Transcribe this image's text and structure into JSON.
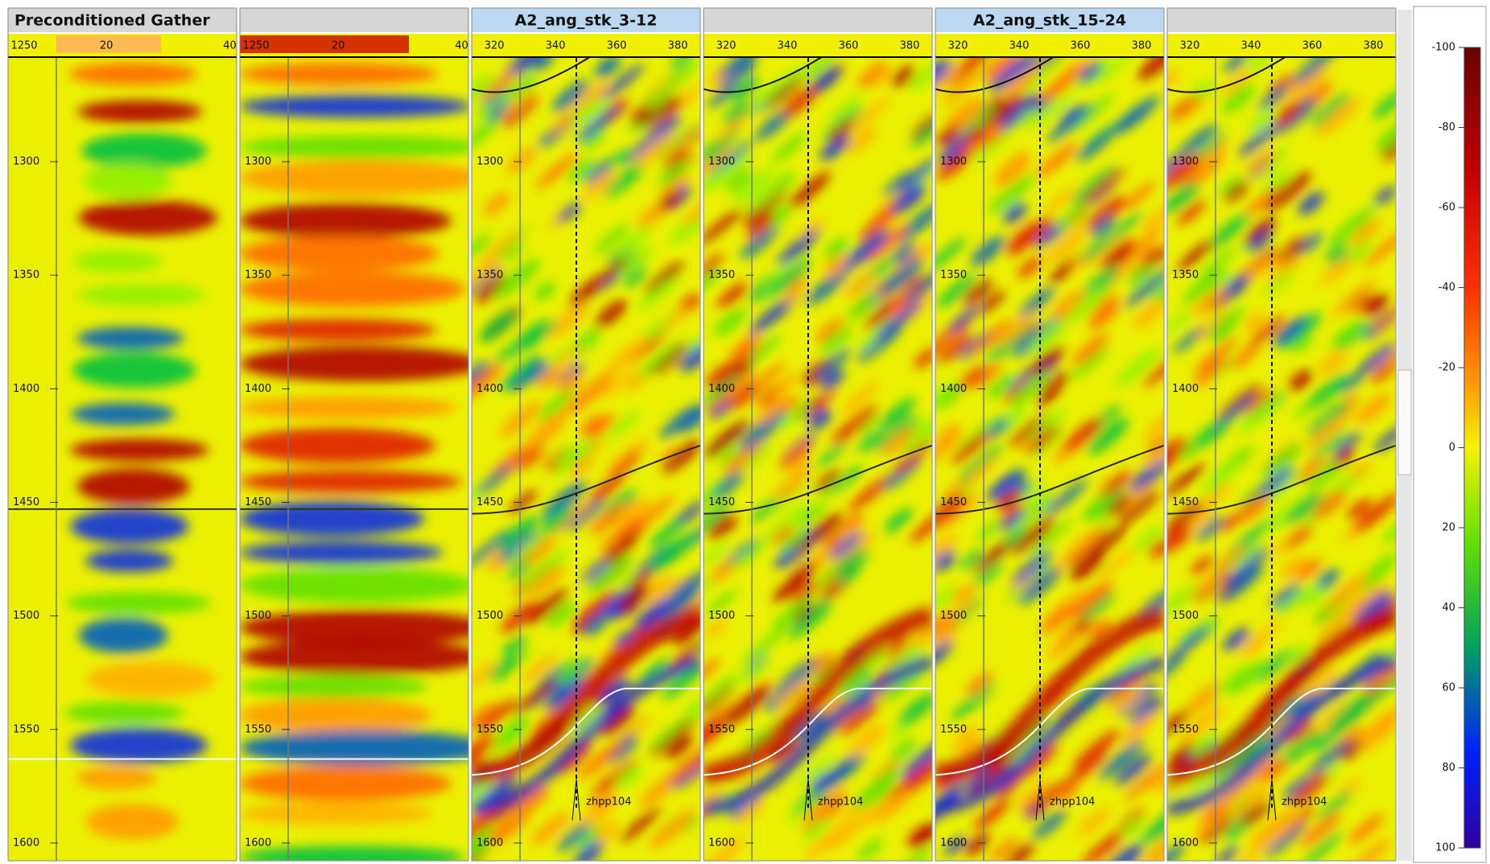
{
  "panels": [
    {
      "title": "Preconditioned Gather",
      "top_ticks": [
        1250,
        20,
        40
      ],
      "depth_ticks": [
        1300,
        1350,
        1400,
        1450,
        1500,
        1550,
        1600
      ]
    },
    {
      "top_ticks": [
        1250,
        20,
        40
      ],
      "depth_ticks": [
        1300,
        1350,
        1400,
        1450,
        1500,
        1550,
        1600
      ]
    },
    {
      "title": "A2_ang_stk_3-12",
      "top_ticks": [
        320,
        340,
        360,
        380
      ],
      "depth_ticks": [
        1300,
        1350,
        1400,
        1450,
        1500,
        1550,
        1600
      ],
      "well_label": "zhpp104"
    },
    {
      "top_ticks": [
        320,
        340,
        360,
        380
      ],
      "depth_ticks": [
        1300,
        1350,
        1400,
        1450,
        1500,
        1550,
        1600
      ],
      "well_label": "zhpp104"
    },
    {
      "title": "A2_ang_stk_15-24",
      "top_ticks": [
        320,
        340,
        360,
        380
      ],
      "depth_ticks": [
        1300,
        1350,
        1400,
        1450,
        1500,
        1550,
        1600
      ],
      "well_label": "zhpp104"
    },
    {
      "top_ticks": [
        320,
        340,
        360,
        380
      ],
      "depth_ticks": [
        1300,
        1350,
        1400,
        1450,
        1500,
        1550,
        1600
      ],
      "well_label": "zhpp104"
    }
  ],
  "colorbar": {
    "ticks": [
      -100,
      -80,
      -60,
      -40,
      -20,
      0,
      20,
      40,
      60,
      80,
      100
    ]
  }
}
